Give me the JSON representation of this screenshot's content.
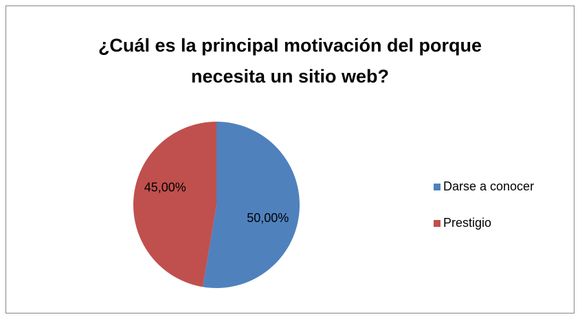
{
  "chart_data": {
    "type": "pie",
    "title": "¿Cuál es la principal motivación del porque necesita un sitio web?",
    "categories": [
      "Darse a conocer",
      "Prestigio"
    ],
    "values": [
      50,
      45
    ],
    "value_labels": [
      "50,00%",
      "45,00%"
    ],
    "colors": [
      "#4f81bd",
      "#c0504d"
    ],
    "legend": "right"
  }
}
